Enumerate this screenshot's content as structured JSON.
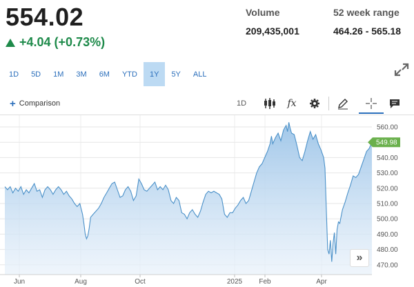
{
  "quote": {
    "price": "554.02",
    "change": "+4.04 (+0.73%)",
    "volume_label": "Volume",
    "volume_value": "209,435,001",
    "range_label": "52 week range",
    "range_value": "464.26 - 565.18"
  },
  "ranges": [
    "1D",
    "5D",
    "1M",
    "3M",
    "6M",
    "YTD",
    "1Y",
    "5Y",
    "ALL"
  ],
  "active_range": "1Y",
  "toolbar": {
    "comparison_label": "Comparison",
    "interval_label": "1D"
  },
  "chart_data": {
    "type": "area",
    "y_ticks": [
      470,
      480,
      490,
      500,
      510,
      520,
      530,
      540,
      550,
      560
    ],
    "y_tick_labels": [
      "470.00",
      "480.00",
      "490.00",
      "500.00",
      "510.00",
      "520.00",
      "530.00",
      "540.00",
      "550.00",
      "560.00"
    ],
    "ylim": [
      465,
      566
    ],
    "x_tick_labels": [
      "Jun",
      "Aug",
      "Oct",
      "2025",
      "Feb",
      "Apr"
    ],
    "last_value_label": "549.98",
    "line_color": "#4a90c8",
    "series": [
      {
        "points": [
          [
            0,
            521
          ],
          [
            2,
            519
          ],
          [
            4,
            521
          ],
          [
            6,
            517
          ],
          [
            8,
            520
          ],
          [
            10,
            518
          ],
          [
            12,
            521
          ],
          [
            14,
            516
          ],
          [
            16,
            519
          ],
          [
            18,
            517
          ],
          [
            20,
            520
          ],
          [
            22,
            523
          ],
          [
            24,
            518
          ],
          [
            26,
            519
          ],
          [
            28,
            514
          ],
          [
            30,
            519
          ],
          [
            32,
            521
          ],
          [
            34,
            519
          ],
          [
            36,
            516
          ],
          [
            38,
            519
          ],
          [
            40,
            521
          ],
          [
            42,
            519
          ],
          [
            44,
            516
          ],
          [
            46,
            518
          ],
          [
            48,
            515
          ],
          [
            50,
            513
          ],
          [
            52,
            510
          ],
          [
            54,
            508
          ],
          [
            56,
            510
          ],
          [
            58,
            503
          ],
          [
            59,
            497
          ],
          [
            60,
            490
          ],
          [
            61,
            487
          ],
          [
            62,
            489
          ],
          [
            63,
            494
          ],
          [
            64,
            501
          ],
          [
            66,
            503
          ],
          [
            68,
            505
          ],
          [
            70,
            507
          ],
          [
            72,
            510
          ],
          [
            74,
            514
          ],
          [
            76,
            517
          ],
          [
            78,
            520
          ],
          [
            80,
            523
          ],
          [
            82,
            524
          ],
          [
            84,
            519
          ],
          [
            86,
            514
          ],
          [
            88,
            515
          ],
          [
            90,
            519
          ],
          [
            92,
            521
          ],
          [
            94,
            518
          ],
          [
            96,
            512
          ],
          [
            98,
            515
          ],
          [
            100,
            526
          ],
          [
            102,
            523
          ],
          [
            104,
            519
          ],
          [
            106,
            518
          ],
          [
            108,
            520
          ],
          [
            110,
            522
          ],
          [
            112,
            524
          ],
          [
            114,
            519
          ],
          [
            116,
            521
          ],
          [
            118,
            519
          ],
          [
            120,
            522
          ],
          [
            122,
            519
          ],
          [
            124,
            512
          ],
          [
            126,
            510
          ],
          [
            128,
            514
          ],
          [
            130,
            512
          ],
          [
            132,
            504
          ],
          [
            134,
            503
          ],
          [
            136,
            500
          ],
          [
            138,
            504
          ],
          [
            140,
            506
          ],
          [
            142,
            503
          ],
          [
            144,
            501
          ],
          [
            146,
            505
          ],
          [
            148,
            511
          ],
          [
            150,
            516
          ],
          [
            152,
            518
          ],
          [
            154,
            517
          ],
          [
            156,
            518
          ],
          [
            158,
            517
          ],
          [
            160,
            516
          ],
          [
            162,
            513
          ],
          [
            164,
            503
          ],
          [
            166,
            501
          ],
          [
            168,
            504
          ],
          [
            170,
            504
          ],
          [
            172,
            507
          ],
          [
            174,
            509
          ],
          [
            176,
            512
          ],
          [
            178,
            514
          ],
          [
            180,
            510
          ],
          [
            182,
            512
          ],
          [
            184,
            518
          ],
          [
            186,
            524
          ],
          [
            188,
            530
          ],
          [
            190,
            534
          ],
          [
            192,
            536
          ],
          [
            194,
            540
          ],
          [
            196,
            544
          ],
          [
            198,
            549
          ],
          [
            199,
            554
          ],
          [
            200,
            549
          ],
          [
            202,
            553
          ],
          [
            204,
            556
          ],
          [
            206,
            551
          ],
          [
            208,
            558
          ],
          [
            210,
            561
          ],
          [
            211,
            557
          ],
          [
            212,
            563
          ],
          [
            213,
            559
          ],
          [
            214,
            556
          ],
          [
            216,
            555
          ],
          [
            218,
            548
          ],
          [
            220,
            540
          ],
          [
            222,
            538
          ],
          [
            224,
            544
          ],
          [
            226,
            551
          ],
          [
            228,
            557
          ],
          [
            230,
            552
          ],
          [
            232,
            555
          ],
          [
            234,
            549
          ],
          [
            236,
            545
          ],
          [
            238,
            540
          ],
          [
            239,
            533
          ],
          [
            240,
            505
          ],
          [
            241,
            480
          ],
          [
            242,
            477
          ],
          [
            243,
            486
          ],
          [
            244,
            472
          ],
          [
            245,
            484
          ],
          [
            246,
            491
          ],
          [
            247,
            477
          ],
          [
            248,
            493
          ],
          [
            249,
            498
          ],
          [
            250,
            497
          ],
          [
            252,
            506
          ],
          [
            254,
            511
          ],
          [
            256,
            517
          ],
          [
            258,
            522
          ],
          [
            260,
            528
          ],
          [
            262,
            527
          ],
          [
            264,
            529
          ],
          [
            266,
            534
          ],
          [
            268,
            539
          ],
          [
            270,
            544
          ],
          [
            272,
            546
          ],
          [
            274,
            549.98
          ]
        ]
      }
    ]
  }
}
